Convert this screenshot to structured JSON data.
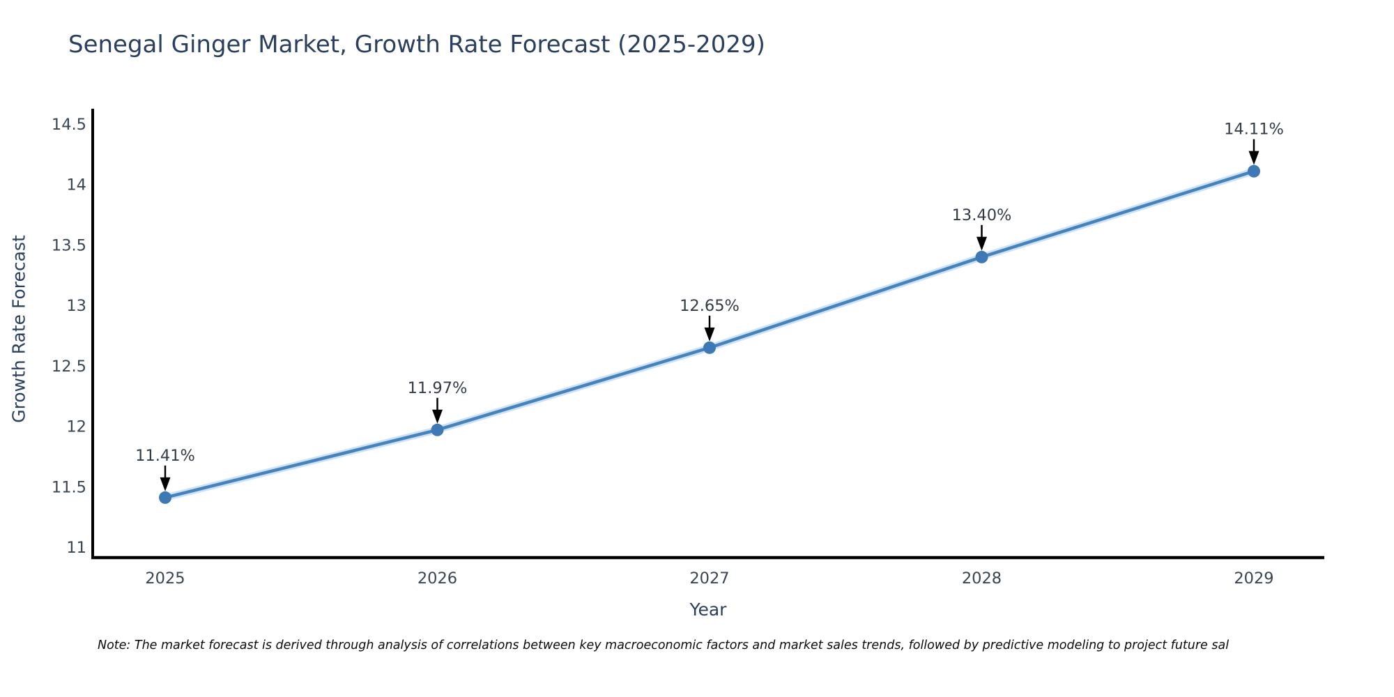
{
  "page": {
    "background_color": "#ffffff"
  },
  "chart_data": {
    "type": "line",
    "title": "Senegal Ginger Market, Growth Rate Forecast (2025-2029)",
    "xlabel": "Year",
    "ylabel": "Growth Rate Forecast",
    "x": [
      2025,
      2026,
      2027,
      2028,
      2029
    ],
    "x_tick_labels": [
      "2025",
      "2026",
      "2027",
      "2028",
      "2029"
    ],
    "series": [
      {
        "name": "Growth Rate Forecast",
        "values": [
          11.41,
          11.97,
          12.65,
          13.4,
          14.11
        ],
        "point_labels": [
          "11.41%",
          "11.97%",
          "12.65%",
          "13.40%",
          "14.11%"
        ]
      }
    ],
    "y_ticks": [
      11,
      11.5,
      12,
      12.5,
      13,
      13.5,
      14,
      14.5
    ],
    "y_tick_labels": [
      "11",
      "11.5",
      "12",
      "12.5",
      "13",
      "13.5",
      "14",
      "14.5"
    ],
    "ylim": [
      10.9,
      14.62
    ],
    "grid": false,
    "legend_position": "none",
    "annotations_have_arrows": true,
    "colors": {
      "line": "#4384bf",
      "line_glow": "#cfe2f3",
      "marker": "#3c79b5",
      "axis": "#000000",
      "title_text": "#2a3f5f",
      "axis_title_text": "#2a3f5f",
      "tick_text": "#3a4552",
      "annotation_text": "#333b47",
      "arrow": "#000000"
    }
  },
  "note": {
    "text": "Note: The market forecast is derived through analysis of correlations between key macroeconomic factors and market sales trends, followed by predictive modeling to project future sal"
  }
}
